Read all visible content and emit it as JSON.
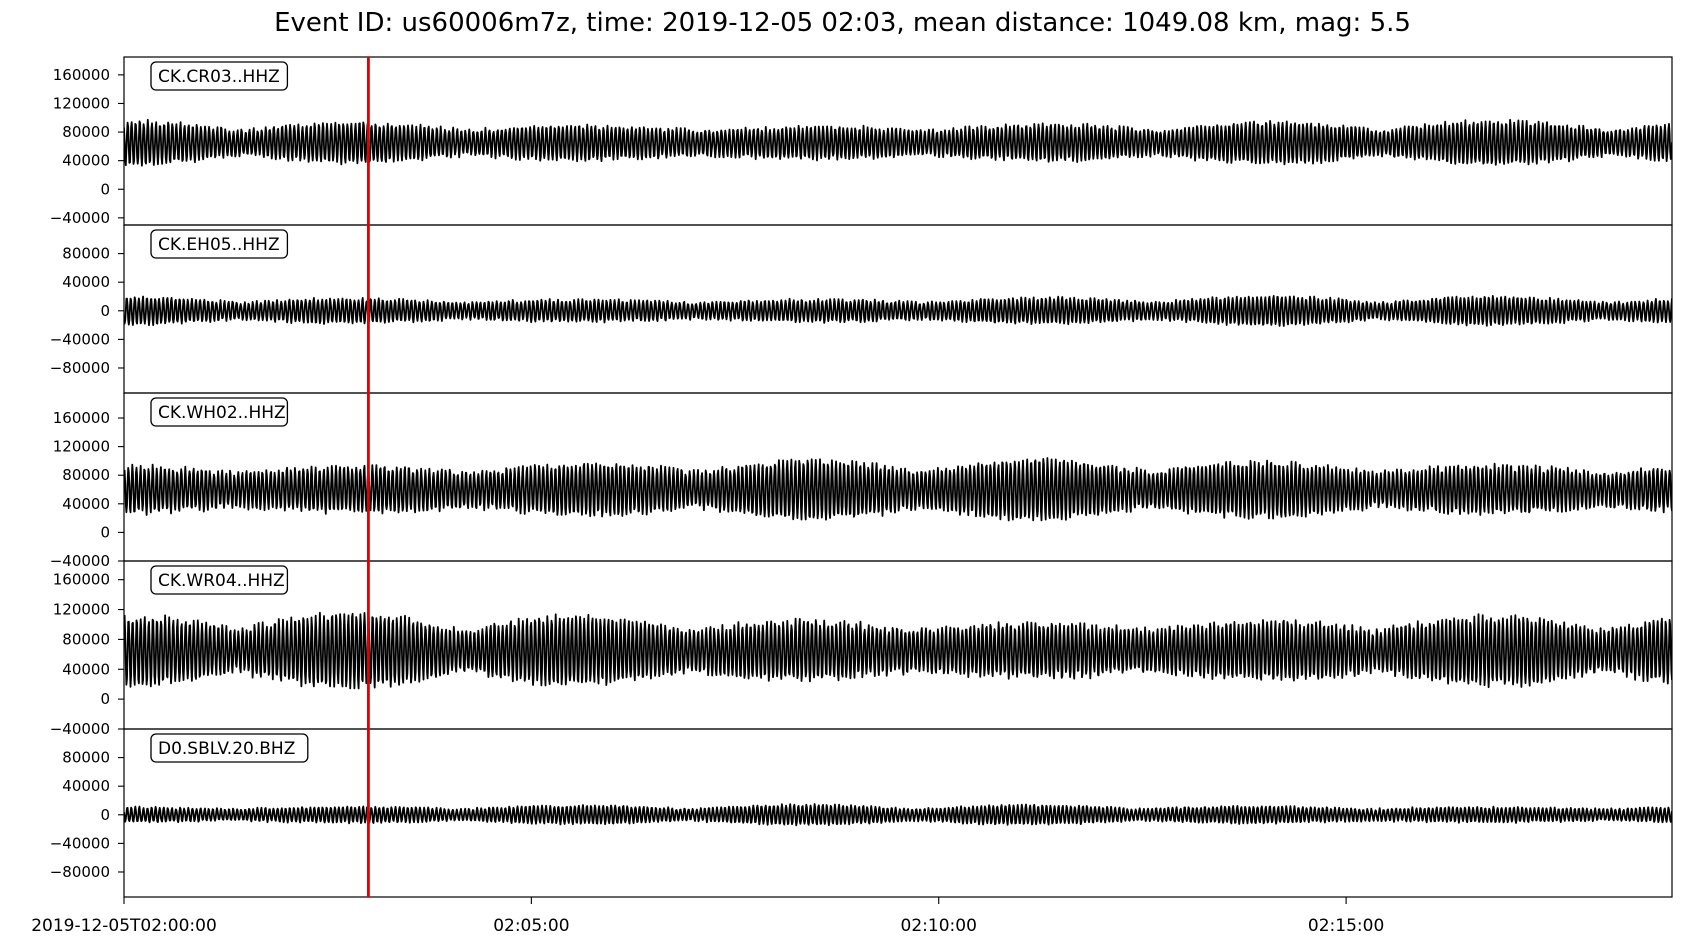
{
  "chart_data": {
    "type": "line",
    "title": "Event ID: us60006m7z, time: 2019-12-05 02:03, mean distance: 1049.08 km, mag: 5.5",
    "xlabel": "",
    "x_range_minutes": [
      0,
      19
    ],
    "x_ticks": [
      {
        "minute": 0,
        "label": "2019-12-05T02:00:00"
      },
      {
        "minute": 5,
        "label": "02:05:00"
      },
      {
        "minute": 10,
        "label": "02:10:00"
      },
      {
        "minute": 15,
        "label": "02:15:00"
      }
    ],
    "event_marker": {
      "minute": 3,
      "color": "#e00000"
    },
    "trace_color": "#000000",
    "grid": false,
    "panels": [
      {
        "station": "CK.CR03..HHZ",
        "ylim": [
          -50000,
          185000
        ],
        "center": 65000,
        "amplitude": 30000,
        "yticks": [
          160000,
          120000,
          80000,
          40000,
          0,
          -40000
        ],
        "ytick_labels": [
          "160000",
          "120000",
          "80000",
          "40000",
          "0",
          "−40000"
        ],
        "seed": 11
      },
      {
        "station": "CK.EH05..HHZ",
        "ylim": [
          -115000,
          120000
        ],
        "center": 0,
        "amplitude": 20000,
        "yticks": [
          80000,
          40000,
          0,
          -40000,
          -80000
        ],
        "ytick_labels": [
          "80000",
          "40000",
          "0",
          "−40000",
          "−80000"
        ],
        "seed": 23
      },
      {
        "station": "CK.WH02..HHZ",
        "ylim": [
          -40000,
          195000
        ],
        "center": 60000,
        "amplitude": 42000,
        "yticks": [
          160000,
          120000,
          80000,
          40000,
          0,
          -40000
        ],
        "ytick_labels": [
          "160000",
          "120000",
          "80000",
          "40000",
          "0",
          "−40000"
        ],
        "seed": 37
      },
      {
        "station": "CK.WR04..HHZ",
        "ylim": [
          -40000,
          185000
        ],
        "center": 65000,
        "amplitude": 48000,
        "yticks": [
          160000,
          120000,
          80000,
          40000,
          0,
          -40000
        ],
        "ytick_labels": [
          "160000",
          "120000",
          "80000",
          "40000",
          "0",
          "−40000"
        ],
        "seed": 53
      },
      {
        "station": "D0.SBLV.20.BHZ",
        "ylim": [
          -115000,
          120000
        ],
        "center": 0,
        "amplitude": 14000,
        "yticks": [
          80000,
          40000,
          0,
          -40000,
          -80000
        ],
        "ytick_labels": [
          "80000",
          "40000",
          "0",
          "−40000",
          "−80000"
        ],
        "seed": 71
      }
    ]
  }
}
